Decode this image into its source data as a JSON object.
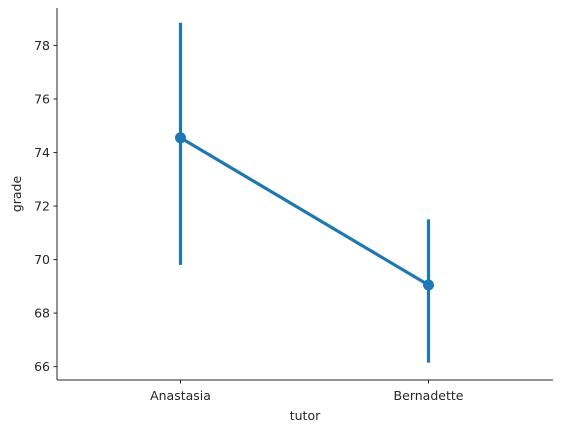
{
  "chart_data": {
    "type": "line",
    "title": "",
    "xlabel": "tutor",
    "ylabel": "grade",
    "categories": [
      "Anastasia",
      "Bernadette"
    ],
    "series": [
      {
        "values": [
          74.55,
          69.05
        ],
        "error_low": [
          69.8,
          66.15
        ],
        "error_high": [
          78.85,
          71.5
        ]
      }
    ],
    "ylim": [
      65.5,
      79.4
    ],
    "yticks": [
      66,
      68,
      70,
      72,
      74,
      76,
      78
    ],
    "grid": false,
    "color": "#1f77b4"
  }
}
